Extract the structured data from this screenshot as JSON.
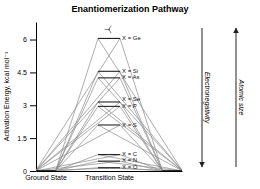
{
  "chart_data": {
    "type": "energy_diagram",
    "title": "Enantiomerization Pathway",
    "ylabel": "Activation Energy, kcal mol⁻¹",
    "categories": [
      "Ground State",
      "Transition State",
      null
    ],
    "ylim": [
      0,
      6.8
    ],
    "yticks": [
      0,
      1.5,
      3,
      4.5,
      6
    ],
    "series": [
      {
        "name": "X = Ge",
        "values": [
          0.0,
          6.05,
          0.0
        ]
      },
      {
        "name": "X = Si",
        "values": [
          0.0,
          4.55,
          0.0
        ]
      },
      {
        "name": "X = As",
        "values": [
          0.0,
          4.25,
          0.0
        ]
      },
      {
        "name": "X = Se",
        "values": [
          0.0,
          3.15,
          0.0
        ]
      },
      {
        "name": "X = P",
        "values": [
          0.0,
          2.95,
          0.0
        ]
      },
      {
        "name": "X = S",
        "values": [
          0.0,
          2.1,
          0.0
        ]
      },
      {
        "name": "X = C",
        "values": [
          0.0,
          0.75,
          0.0
        ]
      },
      {
        "name": "X = N",
        "values": [
          0.0,
          0.45,
          0.0
        ]
      },
      {
        "name": "X = O",
        "values": [
          0.0,
          0.15,
          0.0
        ]
      }
    ],
    "annotations": [
      {
        "text": "Electronegativity",
        "direction": "down"
      },
      {
        "text": "Atomic size",
        "direction": "up"
      }
    ]
  }
}
